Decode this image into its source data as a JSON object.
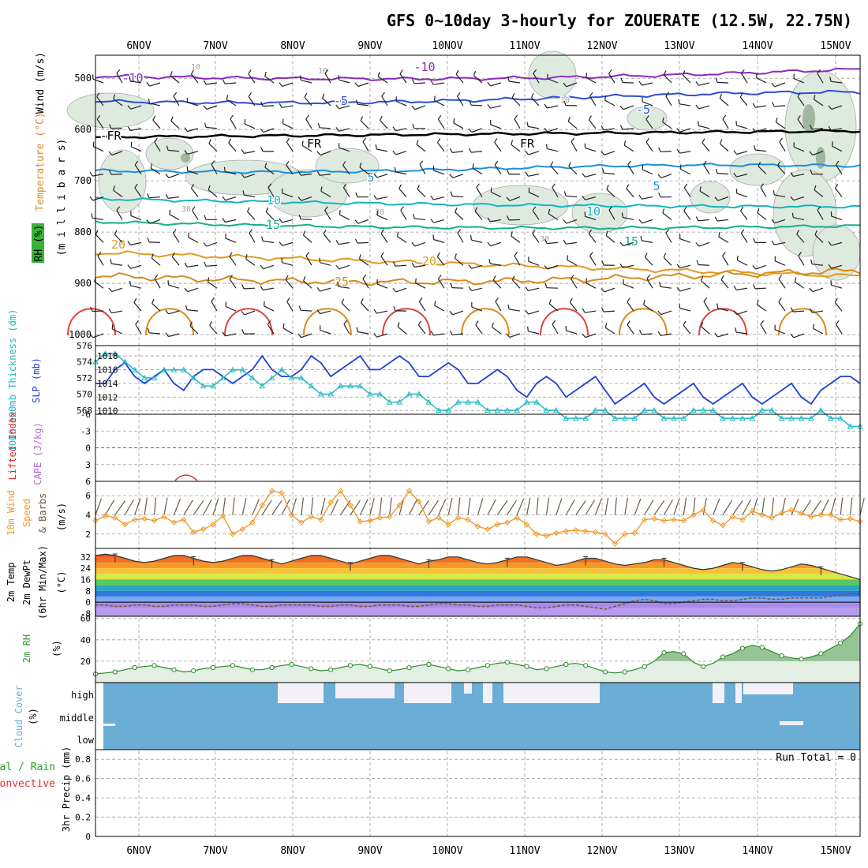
{
  "title": "GFS 0~10day 3-hourly for ZOUERATE (12.5W, 22.75N)",
  "x_labels": [
    "6NOV",
    "7NOV",
    "8NOV",
    "9NOV",
    "10NOV",
    "11NOV",
    "12NOV",
    "13NOV",
    "14NOV",
    "15NOV"
  ],
  "colors": {
    "frame": "#000000",
    "grid": "#9a9a9a",
    "rh_fill": "#dfeadf",
    "rh_fill_dark": "#9fb69f",
    "rh_contour": "#a8a8a8",
    "freezing": "#000000",
    "slp": "#1f3fd6",
    "thickness": "#22b7c4",
    "wind_speed": "#ee9a2a",
    "barb": "#222222",
    "barb_10m": "#6b5a45",
    "dewpt": "#7a5a3a",
    "rh2m_line": "#2f8a2f",
    "rh2m_fill": "#e3efe3",
    "rh2m_fill_dark": "#97c497",
    "cloud": "#6aaed6",
    "cloud_gap": "#f4f0fa",
    "lifted": "#dd3333",
    "cape": "#b066cc"
  },
  "panels": {
    "upper": {
      "ylabel_wind": "Wind (m/s)",
      "ylabel_temp": "Temperature (°C)",
      "ylabel_rh": "RH (%)",
      "ylabel_p": "(m i l l i b a r s)",
      "y_ticks": [
        "500",
        "600",
        "700",
        "800",
        "900",
        "1000"
      ],
      "labels": [
        {
          "text": "-10",
          "color": "#8a2ac0"
        },
        {
          "text": "-10",
          "color": "#8a2ac0"
        },
        {
          "text": "-5",
          "color": "#2c4fd6"
        },
        {
          "text": "-5",
          "color": "#2c4fd6"
        },
        {
          "text": "-FR",
          "color": "#000000"
        },
        {
          "text": "FR",
          "color": "#000000"
        },
        {
          "text": "FR",
          "color": "#000000"
        },
        {
          "text": "5",
          "color": "#1c8fdc"
        },
        {
          "text": "5",
          "color": "#1c8fdc"
        },
        {
          "text": "10",
          "color": "#12b5c0"
        },
        {
          "text": "10",
          "color": "#12b5c0"
        },
        {
          "text": "15",
          "color": "#14b08c"
        },
        {
          "text": "15",
          "color": "#14b08c"
        },
        {
          "text": "20",
          "color": "#e19a22"
        },
        {
          "text": "20",
          "color": "#e19a22"
        },
        {
          "text": "25",
          "color": "#d98a1a"
        },
        {
          "text": "10",
          "color": "#a0a0a0"
        },
        {
          "text": "10",
          "color": "#a0a0a0"
        },
        {
          "text": "10",
          "color": "#a0a0a0"
        },
        {
          "text": "30",
          "color": "#a0a0a0"
        },
        {
          "text": "30",
          "color": "#a0a0a0"
        },
        {
          "text": "30",
          "color": "#a0a0a0"
        }
      ]
    },
    "slp": {
      "ylabel_thick": "1000-500mb Thickness (dm)",
      "ylabel_slp": "SLP (mb)",
      "left_ticks": [
        "576",
        "574",
        "572",
        "570",
        "568"
      ],
      "right_ticks": [
        "1018",
        "1016",
        "1014",
        "1012",
        "1010"
      ]
    },
    "cape": {
      "ylabel_li": "Lifted Index",
      "ylabel_cape": "CAPE (J/kg)",
      "ticks": [
        "-6",
        "-3",
        "0",
        "3",
        "6"
      ]
    },
    "wind10": {
      "ylabel_a": "10m Wind",
      "ylabel_b": "Speed",
      "ylabel_c": "& Barbs",
      "ylabel_unit": "(m/s)",
      "ticks": [
        "6",
        "4",
        "2"
      ]
    },
    "temp2m": {
      "ylabel_a": "2m Temp",
      "ylabel_b": "2m DewPt",
      "ylabel_c": "(6hr Min/Max)",
      "ylabel_unit": "(°C)",
      "ticks": [
        "32",
        "24",
        "16",
        "8",
        "0",
        "-8"
      ]
    },
    "rh2m": {
      "ylabel": "2m RH",
      "ylabel_unit": "(%)",
      "ticks": [
        "60",
        "40",
        "20"
      ]
    },
    "cloud": {
      "ylabel": "Cloud Cover",
      "ylabel_unit": "(%)",
      "ticks": [
        "high",
        "middle",
        "low"
      ]
    },
    "precip": {
      "ylabel_a": "Total / Rain",
      "ylabel_b": "Convective",
      "ylabel_c": "3hr Precip (mm)",
      "ticks": [
        "0.8",
        "0.6",
        "0.4",
        "0.2",
        "0"
      ],
      "run_total": "Run Total = 0"
    }
  },
  "chart_data": [
    {
      "type": "line",
      "name": "upper_air",
      "y_axis": "pressure (mb)",
      "ylim": [
        450,
        1000
      ],
      "contour_levels_temp": [
        -10,
        -5,
        0,
        5,
        10,
        15,
        20,
        25,
        30
      ],
      "freezing_level_mb": 615,
      "isotherms_mb": {
        "-10": 505,
        "-5": 545,
        "5": 680,
        "10": 735,
        "15": 780,
        "20": 840,
        "25": 885
      }
    },
    {
      "type": "line",
      "name": "slp_thickness",
      "x_start_hours": 0,
      "x_step_hours": 3,
      "slp": [
        1014,
        1014,
        1016,
        1017,
        1015,
        1014,
        1015,
        1016,
        1014,
        1013,
        1015,
        1016,
        1016,
        1015,
        1014,
        1015,
        1016,
        1018,
        1016,
        1015,
        1015,
        1016,
        1018,
        1017,
        1015,
        1016,
        1017,
        1018,
        1016,
        1016,
        1017,
        1018,
        1017,
        1015,
        1015,
        1016,
        1017,
        1016,
        1014,
        1014,
        1015,
        1016,
        1015,
        1013,
        1012,
        1014,
        1015,
        1014,
        1012,
        1013,
        1014,
        1015,
        1013,
        1011,
        1012,
        1013,
        1014,
        1012,
        1011,
        1012,
        1013,
        1014,
        1012,
        1011,
        1012,
        1013,
        1014,
        1012,
        1011,
        1012,
        1013,
        1014,
        1012,
        1011,
        1013,
        1014,
        1015,
        1015,
        1014
      ],
      "thickness": [
        574,
        575,
        575,
        574,
        573,
        572,
        572,
        573,
        573,
        573,
        572,
        571,
        571,
        572,
        573,
        573,
        572,
        571,
        572,
        573,
        572,
        572,
        571,
        570,
        570,
        571,
        571,
        571,
        570,
        570,
        569,
        569,
        570,
        570,
        569,
        568,
        568,
        569,
        569,
        569,
        568,
        568,
        568,
        568,
        569,
        569,
        568,
        568,
        567,
        567,
        567,
        568,
        568,
        567,
        567,
        567,
        568,
        568,
        567,
        567,
        567,
        568,
        568,
        568,
        567,
        567,
        567,
        567,
        568,
        568,
        567,
        567,
        567,
        567,
        568,
        567,
        567,
        566,
        566
      ]
    },
    {
      "type": "line",
      "name": "cape_lifted_index",
      "lifted_index_zero_line": 0
    },
    {
      "type": "line",
      "name": "wind10m_speed",
      "x_step_hours": 3,
      "values": [
        3.4,
        3.9,
        3.7,
        3.0,
        3.5,
        3.6,
        3.4,
        3.8,
        3.2,
        3.5,
        2.2,
        2.5,
        3.0,
        3.9,
        2.0,
        2.5,
        3.2,
        5.0,
        6.5,
        6.3,
        4.0,
        3.2,
        3.8,
        3.5,
        5.3,
        6.5,
        5.0,
        3.3,
        3.4,
        3.7,
        3.8,
        5.0,
        6.5,
        5.4,
        3.3,
        3.7,
        3.0,
        3.7,
        3.5,
        2.8,
        2.5,
        3.0,
        3.2,
        3.7,
        3.0,
        2.0,
        1.8,
        2.1,
        2.3,
        2.4,
        2.3,
        2.2,
        2.0,
        1.0,
        2.0,
        2.1,
        3.5,
        3.6,
        3.4,
        3.5,
        3.4,
        4.0,
        4.5,
        3.4,
        2.9,
        3.8,
        3.5,
        4.4,
        4.0,
        3.7,
        4.2,
        4.5,
        4.2,
        3.8,
        4.0,
        4.0,
        3.5,
        3.6,
        3.3
      ]
    },
    {
      "type": "area",
      "name": "temp2m",
      "temp": [
        33,
        34,
        33,
        31,
        29,
        28,
        29,
        31,
        33,
        33,
        31,
        29,
        28,
        29,
        31,
        33,
        33,
        31,
        29,
        27,
        29,
        31,
        33,
        33,
        31,
        29,
        27,
        29,
        31,
        33,
        33,
        31,
        29,
        27,
        29,
        30,
        32,
        32,
        30,
        28,
        27,
        28,
        30,
        32,
        32,
        30,
        28,
        26,
        27,
        29,
        31,
        31,
        29,
        27,
        26,
        27,
        28,
        30,
        30,
        28,
        26,
        24,
        23,
        24,
        26,
        28,
        27,
        25,
        23,
        22,
        23,
        25,
        27,
        26,
        24,
        22,
        20,
        18,
        16
      ],
      "dewpt": [
        -2,
        -2,
        -3,
        -3,
        -2,
        -2,
        -3,
        -3,
        -2,
        -2,
        -2,
        -3,
        -3,
        -2,
        -1,
        -1,
        -2,
        -3,
        -3,
        -2,
        -2,
        -2,
        -2,
        -3,
        -3,
        -2,
        -2,
        -3,
        -3,
        -2,
        -2,
        -2,
        -3,
        -3,
        -2,
        -1,
        -1,
        -2,
        -2,
        -3,
        -3,
        -2,
        -2,
        -2,
        -3,
        -4,
        -4,
        -3,
        -2,
        -2,
        -3,
        -4,
        -5,
        -3,
        -1,
        1,
        2,
        1,
        -1,
        -1,
        0,
        1,
        2,
        2,
        1,
        1,
        2,
        3,
        3,
        2,
        2,
        3,
        3,
        3,
        3,
        4,
        5,
        6,
        6
      ]
    },
    {
      "type": "area",
      "name": "rh2m",
      "values": [
        8,
        9,
        10,
        12,
        14,
        15,
        16,
        14,
        12,
        10,
        11,
        13,
        14,
        15,
        16,
        14,
        12,
        12,
        14,
        16,
        17,
        15,
        13,
        11,
        12,
        14,
        16,
        17,
        15,
        13,
        11,
        12,
        14,
        16,
        17,
        15,
        13,
        11,
        12,
        14,
        16,
        18,
        19,
        17,
        15,
        12,
        13,
        15,
        17,
        18,
        16,
        13,
        10,
        9,
        10,
        12,
        15,
        20,
        28,
        29,
        27,
        19,
        15,
        18,
        24,
        27,
        32,
        35,
        33,
        29,
        25,
        23,
        22,
        24,
        27,
        32,
        37,
        44,
        55
      ]
    },
    {
      "type": "bar",
      "name": "cloud_cover",
      "levels": [
        "high",
        "middle",
        "low"
      ],
      "high_clear_start": "8NOV",
      "high_clear_end": "12NOV"
    },
    {
      "type": "bar",
      "name": "precip3hr",
      "total": 0
    }
  ]
}
